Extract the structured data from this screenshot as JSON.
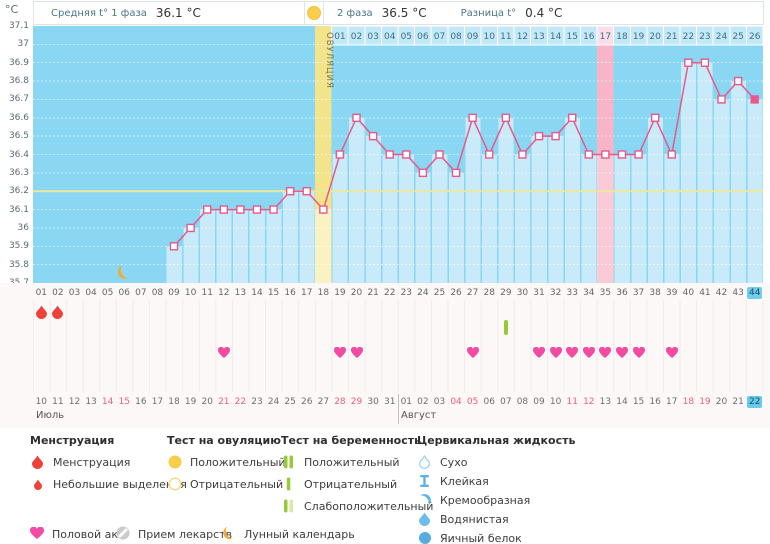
{
  "unit_label": "°C",
  "header": {
    "phase1_label": "Средняя t° 1 фаза",
    "phase1_value": "36.1 °C",
    "phase2_label": "2 фаза",
    "phase2_value": "36.5 °C",
    "diff_label": "Разница t°",
    "diff_value": "0.4 °C"
  },
  "chart_data": {
    "type": "line",
    "ylabel": "°C",
    "ylim": [
      35.7,
      37.1
    ],
    "ytick_step": 0.1,
    "grid": true,
    "coverline_temp": 36.2,
    "total_days": 44,
    "ovulation_day": 18,
    "ovulation_label": "ОВУЛЯЦИЯ",
    "marked_day": 35,
    "marked_day_phase2_label": "17",
    "selected_day": 44,
    "phase2_start_day": 19,
    "phase1_average": 36.1,
    "phase2_average": 36.5,
    "difference": 0.4,
    "temperatures": [
      null,
      null,
      null,
      null,
      null,
      null,
      null,
      null,
      35.9,
      36.0,
      36.1,
      36.1,
      36.1,
      36.1,
      36.1,
      36.2,
      36.2,
      36.1,
      36.4,
      36.6,
      36.5,
      36.4,
      36.4,
      36.3,
      36.4,
      36.3,
      36.6,
      36.4,
      36.6,
      36.4,
      36.5,
      36.5,
      36.6,
      36.4,
      36.4,
      36.4,
      36.4,
      36.6,
      36.4,
      36.9,
      36.9,
      36.7,
      36.8,
      36.7
    ]
  },
  "events": {
    "menstruation_days": [
      1,
      2
    ],
    "lunar_calendar_day": 6,
    "pregnancy_test_negative_days": [
      29
    ],
    "intercourse_days": [
      12,
      19,
      20,
      27,
      31,
      32,
      33,
      34,
      35,
      36,
      37,
      39
    ]
  },
  "calendar": {
    "months": [
      {
        "name": "Июль",
        "start_cycle_day": 1,
        "dates": [
          10,
          11,
          12,
          13,
          14,
          15,
          16,
          17,
          18,
          19,
          20,
          21,
          22,
          23,
          24,
          25,
          26,
          27,
          28,
          29,
          30,
          31
        ],
        "weekend_dates": [
          14,
          15,
          21,
          22,
          28,
          29
        ]
      },
      {
        "name": "Август",
        "start_cycle_day": 23,
        "dates": [
          1,
          2,
          3,
          4,
          5,
          6,
          7,
          8,
          9,
          10,
          11,
          12,
          13,
          14,
          15,
          16,
          17,
          18,
          19,
          20,
          21,
          22
        ],
        "weekend_dates": [
          4,
          5,
          11,
          12,
          18,
          19
        ],
        "selected_date": 22
      }
    ]
  },
  "legend": {
    "sections": [
      {
        "title": "Менструация",
        "items": [
          {
            "icon": "drop-large-red",
            "label": "Менструация"
          },
          {
            "icon": "drop-small-red",
            "label": "Небольшие выделения"
          }
        ]
      },
      {
        "title": "Тест на овуляцию",
        "items": [
          {
            "icon": "circle-yellow-filled",
            "label": "Положительный"
          },
          {
            "icon": "circle-yellow-outline",
            "label": "Отрицательный"
          }
        ]
      },
      {
        "title": "Тест на беременность",
        "items": [
          {
            "icon": "bars-two-green",
            "label": "Положительный"
          },
          {
            "icon": "bar-one-green",
            "label": "Отрицательный"
          },
          {
            "icon": "bars-weak-green",
            "label": "Слабоположительный"
          }
        ]
      },
      {
        "title": "Цервикальная жидкость",
        "items": [
          {
            "icon": "drop-outline-blue",
            "label": "Сухо"
          },
          {
            "icon": "ibeam-blue",
            "label": "Клейкая"
          },
          {
            "icon": "crescent-blue",
            "label": "Кремообразная"
          },
          {
            "icon": "drop-blue",
            "label": "Водянистая"
          },
          {
            "icon": "circle-blue",
            "label": "Яичный белок"
          }
        ]
      }
    ],
    "bottom_items": [
      {
        "icon": "heart-pink",
        "label": "Половой акт"
      },
      {
        "icon": "pill-gray",
        "label": "Прием лекарств"
      },
      {
        "icon": "moon-orange",
        "label": "Лунный календарь"
      }
    ]
  },
  "colors": {
    "chart_bg": "#89D7F2",
    "bar": "#C9EAF8",
    "line": "#E7598A",
    "coverline": "#EDE89C",
    "ovulation_band": "#F3E38A",
    "ovulation_band_light": "#F9F2C2",
    "ovulation_text": "#77764E",
    "marked_band": "#F8B5C8",
    "marked_band_light": "#FACBD7",
    "day_cell": "#C3E9F8",
    "day_cell_marked": "#FBDEE9",
    "day_cell_text": "#3A7086",
    "selected_day_bg": "#6FCDEE",
    "menstruation": "#EE4139",
    "intercourse": "#F34BA3",
    "test_green": "#96C93D",
    "test_green_light": "#D9E9A8",
    "lunar": "#F5A833",
    "cervical_blue": "#5FB2E5",
    "ovulation_test_yellow": "#F8CE4B",
    "weekend_red": "#F05E78"
  }
}
